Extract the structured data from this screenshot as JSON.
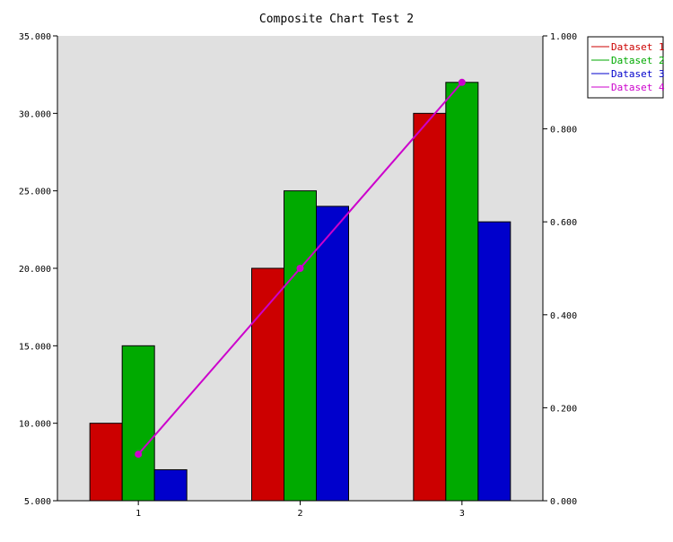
{
  "chart_data": {
    "type": "bar",
    "title": "Composite Chart Test 2",
    "categories": [
      "1",
      "2",
      "3"
    ],
    "y_left": {
      "range": [
        5,
        35
      ],
      "ticks": [
        "5.000",
        "10.000",
        "15.000",
        "20.000",
        "25.000",
        "30.000",
        "35.000"
      ],
      "tick_values": [
        5,
        10,
        15,
        20,
        25,
        30,
        35
      ]
    },
    "y_right": {
      "range": [
        0,
        1
      ],
      "ticks": [
        "0.000",
        "0.200",
        "0.400",
        "0.600",
        "0.800",
        "1.000"
      ],
      "tick_values": [
        0,
        0.2,
        0.4,
        0.6,
        0.8,
        1.0
      ]
    },
    "series": [
      {
        "name": "Dataset 1",
        "type": "bar",
        "axis": "left",
        "color": "#cc0000",
        "values": [
          10,
          20,
          30
        ]
      },
      {
        "name": "Dataset 2",
        "type": "bar",
        "axis": "left",
        "color": "#00aa00",
        "values": [
          15,
          25,
          32
        ]
      },
      {
        "name": "Dataset 3",
        "type": "bar",
        "axis": "left",
        "color": "#0000cc",
        "values": [
          7,
          24,
          23
        ]
      },
      {
        "name": "Dataset 4",
        "type": "line",
        "axis": "right",
        "color": "#cc00cc",
        "values": [
          0.1,
          0.5,
          0.9
        ]
      }
    ],
    "plot_background": "#e0e0e0",
    "grid": false,
    "legend_position": "top-right"
  }
}
